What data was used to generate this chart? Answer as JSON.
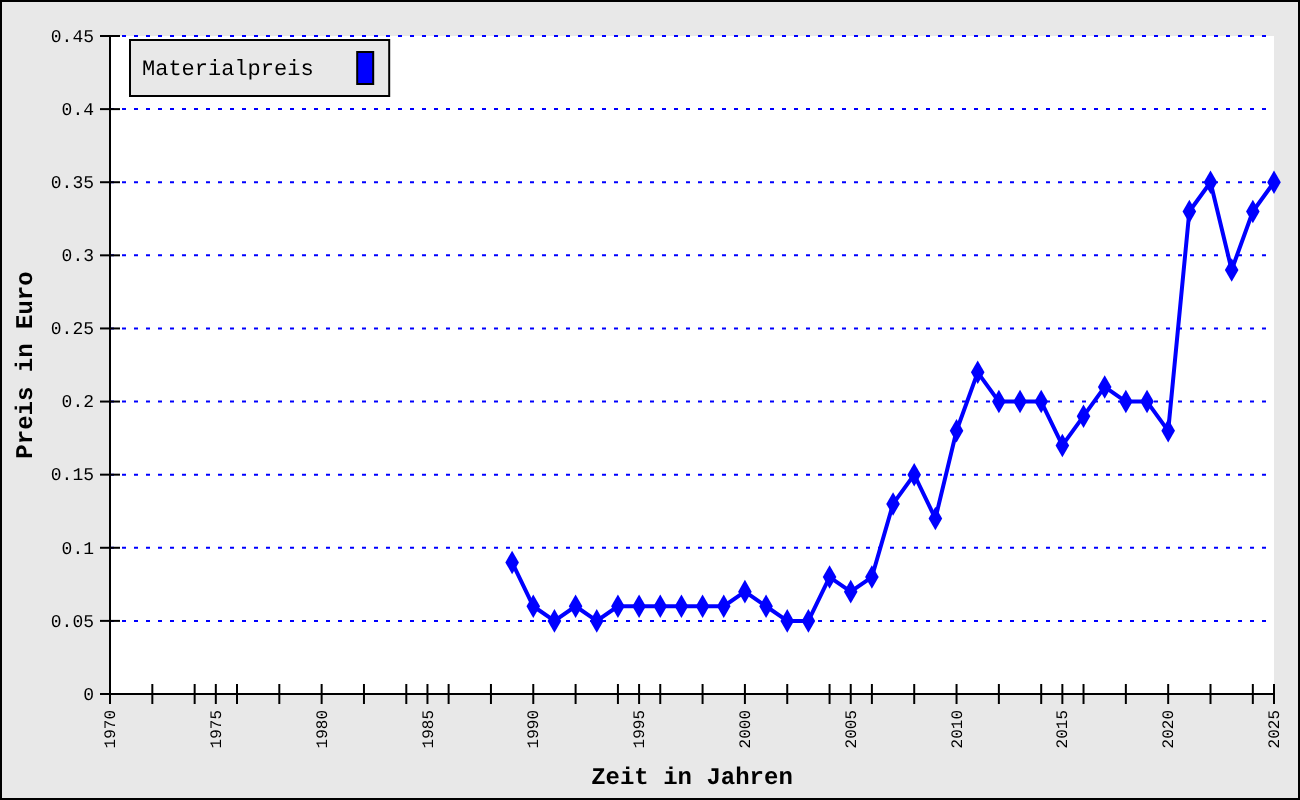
{
  "chart_data": {
    "type": "line",
    "xlabel": "Zeit in Jahren",
    "ylabel": "Preis in Euro",
    "x": [
      1989,
      1990,
      1991,
      1992,
      1993,
      1994,
      1995,
      1996,
      1997,
      1998,
      1999,
      2000,
      2001,
      2002,
      2003,
      2004,
      2005,
      2006,
      2007,
      2008,
      2009,
      2010,
      2011,
      2012,
      2013,
      2014,
      2015,
      2016,
      2017,
      2018,
      2019,
      2020,
      2021,
      2022,
      2023,
      2024,
      2025
    ],
    "series": [
      {
        "name": "Materialpreis",
        "color": "#0000ff",
        "values": [
          0.09,
          0.06,
          0.05,
          0.06,
          0.05,
          0.06,
          0.06,
          0.06,
          0.06,
          0.06,
          0.06,
          0.07,
          0.06,
          0.05,
          0.05,
          0.08,
          0.07,
          0.08,
          0.13,
          0.15,
          0.12,
          0.18,
          0.22,
          0.2,
          0.2,
          0.2,
          0.17,
          0.19,
          0.21,
          0.2,
          0.2,
          0.18,
          0.33,
          0.35,
          0.29,
          0.33,
          0.35
        ]
      }
    ],
    "xlim": [
      1970,
      2025
    ],
    "ylim": [
      0,
      0.45
    ],
    "xticks": [
      1970,
      {
        "value": 1972,
        "label": null
      },
      {
        "value": 1974,
        "label": null
      },
      1975,
      {
        "value": 1976,
        "label": null
      },
      {
        "value": 1978,
        "label": null
      },
      1980,
      {
        "value": 1982,
        "label": null
      },
      {
        "value": 1984,
        "label": null
      },
      1985,
      {
        "value": 1986,
        "label": null
      },
      {
        "value": 1988,
        "label": null
      },
      1990,
      {
        "value": 1992,
        "label": null
      },
      {
        "value": 1994,
        "label": null
      },
      1995,
      {
        "value": 1996,
        "label": null
      },
      {
        "value": 1998,
        "label": null
      },
      2000,
      {
        "value": 2002,
        "label": null
      },
      {
        "value": 2004,
        "label": null
      },
      2005,
      {
        "value": 2006,
        "label": null
      },
      {
        "value": 2008,
        "label": null
      },
      2010,
      {
        "value": 2012,
        "label": null
      },
      {
        "value": 2014,
        "label": null
      },
      2015,
      {
        "value": 2016,
        "label": null
      },
      {
        "value": 2018,
        "label": null
      },
      2020,
      {
        "value": 2022,
        "label": null
      },
      {
        "value": 2024,
        "label": null
      },
      2025
    ],
    "yticks": [
      0,
      0.05,
      0.1,
      0.15,
      0.2,
      0.25,
      0.3,
      0.35,
      0.4,
      0.45
    ],
    "grid": "y",
    "legend": "top left",
    "marker": "diamond",
    "line_style": "solid"
  }
}
